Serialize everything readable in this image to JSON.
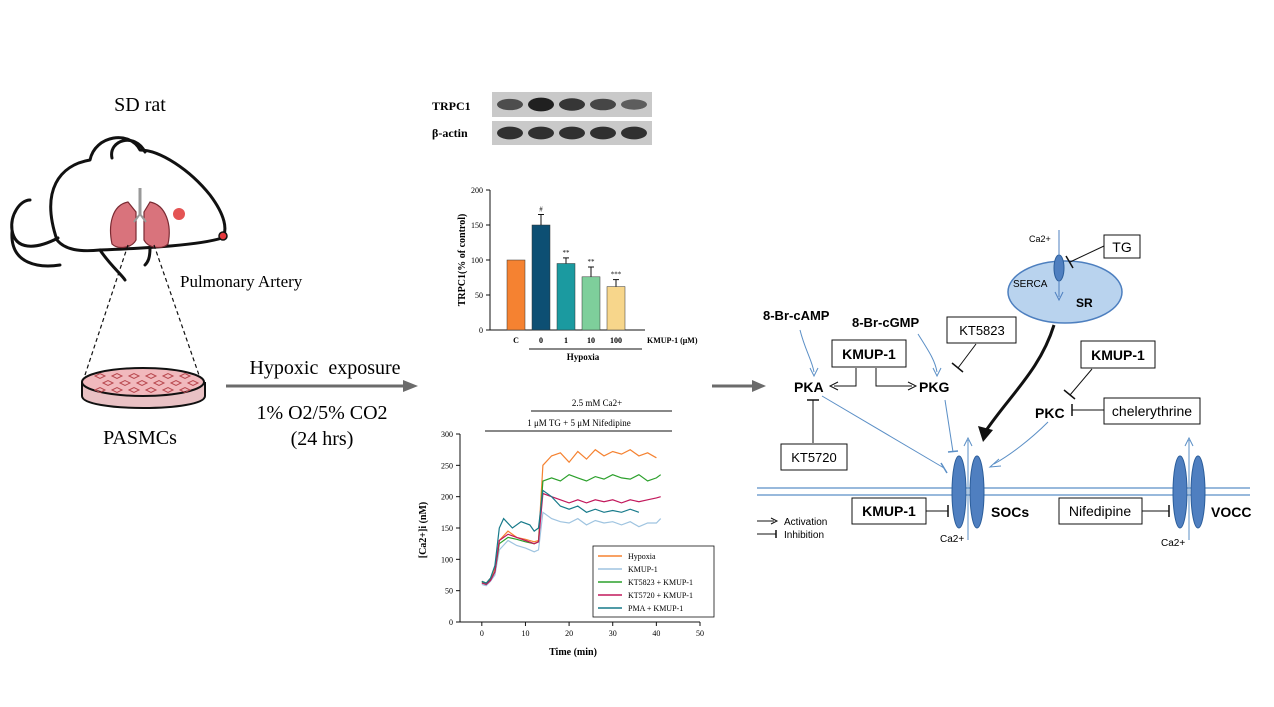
{
  "left": {
    "title": "SD rat",
    "artery_label": "Pulmonary Artery",
    "dish_label": "PASMCs"
  },
  "exposure": {
    "label": "Hypoxic  exposure",
    "condition": "1% O2/5% CO2",
    "duration": "(24 hrs)"
  },
  "western": {
    "rows": [
      {
        "label": "TRPC1",
        "intensities": [
          0.55,
          0.95,
          0.75,
          0.6,
          0.4
        ]
      },
      {
        "label": "β-actin",
        "intensities": [
          0.8,
          0.8,
          0.8,
          0.8,
          0.8
        ]
      }
    ]
  },
  "chart_data": [
    {
      "type": "bar",
      "ylabel": "TRPC1(% of control)",
      "xlabel": "Hypoxia",
      "unit_label": "KMUP-1 (μM)",
      "categories": [
        "C",
        "0",
        "1",
        "10",
        "100"
      ],
      "values": [
        100,
        150,
        95,
        76,
        62
      ],
      "errors": [
        0,
        15,
        8,
        14,
        10
      ],
      "significance": [
        "",
        "#",
        "**",
        "**",
        "***"
      ],
      "colors": [
        "#f58231",
        "#0d4f73",
        "#1b9aa0",
        "#7ecf9b",
        "#f7d68b"
      ],
      "ylim": [
        0,
        200
      ],
      "yticks": [
        0,
        50,
        100,
        150,
        200
      ]
    },
    {
      "type": "line",
      "ylabel": "[Ca2+]i (nM)",
      "xlabel": "Time (min)",
      "xlim": [
        -5,
        50
      ],
      "ylim": [
        0,
        300
      ],
      "xticks": [
        0,
        10,
        20,
        30,
        40,
        50
      ],
      "yticks": [
        0,
        50,
        100,
        150,
        200,
        250,
        300
      ],
      "annotations": [
        "2.5 mM Ca2+",
        "1 μM TG + 5 μM Nifedipine"
      ],
      "series": [
        {
          "name": "Hypoxia",
          "color": "#f58231",
          "points": [
            [
              0,
              65
            ],
            [
              1,
              62
            ],
            [
              2,
              70
            ],
            [
              3,
              85
            ],
            [
              4,
              130
            ],
            [
              6,
              145
            ],
            [
              8,
              135
            ],
            [
              10,
              132
            ],
            [
              12,
              128
            ],
            [
              13,
              130
            ],
            [
              14,
              250
            ],
            [
              16,
              265
            ],
            [
              18,
              270
            ],
            [
              20,
              255
            ],
            [
              22,
              272
            ],
            [
              24,
              260
            ],
            [
              26,
              275
            ],
            [
              28,
              265
            ],
            [
              30,
              272
            ],
            [
              32,
              268
            ],
            [
              34,
              275
            ],
            [
              36,
              265
            ],
            [
              38,
              270
            ],
            [
              40,
              262
            ]
          ]
        },
        {
          "name": "KMUP-1",
          "color": "#9fc4e0",
          "points": [
            [
              0,
              60
            ],
            [
              1,
              58
            ],
            [
              2,
              65
            ],
            [
              3,
              75
            ],
            [
              4,
              115
            ],
            [
              6,
              130
            ],
            [
              8,
              122
            ],
            [
              10,
              118
            ],
            [
              12,
              112
            ],
            [
              13,
              115
            ],
            [
              14,
              175
            ],
            [
              16,
              165
            ],
            [
              18,
              160
            ],
            [
              20,
              158
            ],
            [
              22,
              165
            ],
            [
              24,
              155
            ],
            [
              26,
              162
            ],
            [
              28,
              158
            ],
            [
              30,
              160
            ],
            [
              32,
              155
            ],
            [
              34,
              160
            ],
            [
              36,
              152
            ],
            [
              38,
              158
            ],
            [
              40,
              158
            ],
            [
              41,
              165
            ]
          ]
        },
        {
          "name": "KT5823 + KMUP-1",
          "color": "#2ca02c",
          "points": [
            [
              0,
              63
            ],
            [
              1,
              60
            ],
            [
              2,
              68
            ],
            [
              3,
              80
            ],
            [
              4,
              125
            ],
            [
              6,
              135
            ],
            [
              8,
              132
            ],
            [
              10,
              128
            ],
            [
              12,
              125
            ],
            [
              13,
              128
            ],
            [
              14,
              225
            ],
            [
              16,
              230
            ],
            [
              18,
              225
            ],
            [
              20,
              235
            ],
            [
              22,
              230
            ],
            [
              24,
              225
            ],
            [
              26,
              232
            ],
            [
              28,
              228
            ],
            [
              30,
              235
            ],
            [
              32,
              230
            ],
            [
              34,
              228
            ],
            [
              36,
              235
            ],
            [
              38,
              225
            ],
            [
              40,
              230
            ],
            [
              41,
              235
            ]
          ]
        },
        {
          "name": "KT5720 + KMUP-1",
          "color": "#c2185b",
          "points": [
            [
              0,
              62
            ],
            [
              1,
              60
            ],
            [
              2,
              66
            ],
            [
              3,
              80
            ],
            [
              4,
              130
            ],
            [
              6,
              140
            ],
            [
              8,
              135
            ],
            [
              10,
              130
            ],
            [
              12,
              125
            ],
            [
              13,
              128
            ],
            [
              14,
              205
            ],
            [
              16,
              200
            ],
            [
              18,
              195
            ],
            [
              20,
              190
            ],
            [
              22,
              195
            ],
            [
              24,
              190
            ],
            [
              26,
              195
            ],
            [
              28,
              192
            ],
            [
              30,
              195
            ],
            [
              32,
              190
            ],
            [
              34,
              195
            ],
            [
              36,
              192
            ],
            [
              38,
              195
            ],
            [
              40,
              198
            ],
            [
              41,
              200
            ]
          ]
        },
        {
          "name": "PMA + KMUP-1",
          "color": "#177a8a",
          "points": [
            [
              0,
              65
            ],
            [
              1,
              62
            ],
            [
              2,
              70
            ],
            [
              3,
              90
            ],
            [
              4,
              150
            ],
            [
              5,
              165
            ],
            [
              7,
              150
            ],
            [
              9,
              160
            ],
            [
              11,
              155
            ],
            [
              12,
              145
            ],
            [
              13,
              150
            ],
            [
              14,
              210
            ],
            [
              16,
              200
            ],
            [
              18,
              185
            ],
            [
              20,
              180
            ],
            [
              22,
              185
            ],
            [
              24,
              175
            ],
            [
              26,
              180
            ],
            [
              28,
              175
            ],
            [
              30,
              178
            ],
            [
              32,
              175
            ],
            [
              34,
              180
            ],
            [
              36,
              175
            ]
          ]
        }
      ]
    }
  ],
  "pathway": {
    "sr_label": "SR",
    "serca_label": "SERCA",
    "ca_label": "Ca2+",
    "tg_label": "TG",
    "camp_label": "8-Br-cAMP",
    "cgmp_label": "8-Br-cGMP",
    "kt5823_label": "KT5823",
    "kmup1_label": "KMUP-1",
    "pka_label": "PKA",
    "pkg_label": "PKG",
    "kt5720_label": "KT5720",
    "pkc_label": "PKC",
    "chelerythrine_label": "chelerythrine",
    "socs_label": "SOCs",
    "vocc_label": "VOCC",
    "nifedipine_label": "Nifedipine",
    "legend_activation": "Activation",
    "legend_inhibition": "Inhibition"
  }
}
